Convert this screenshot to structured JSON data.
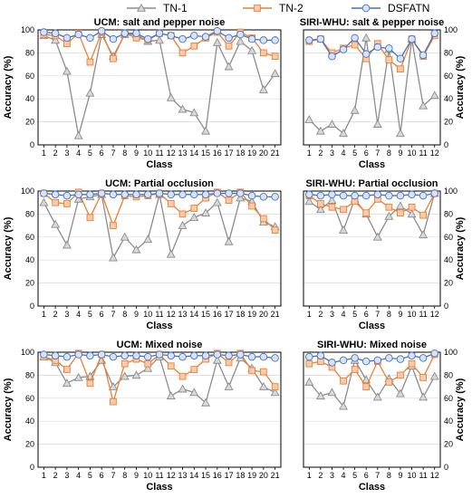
{
  "legend": [
    {
      "name": "TN-1",
      "color": "#8c8c8c",
      "marker": "triangle"
    },
    {
      "name": "TN-2",
      "color": "#ed7d31",
      "marker": "square"
    },
    {
      "name": "DSFATN",
      "color": "#4472c4",
      "marker": "circle"
    }
  ],
  "chart_data": [
    {
      "type": "line",
      "title": "UCM: salt and pepper noise",
      "xlabel": "Class",
      "ylabel": "Accuracy (%)",
      "ylim": [
        0,
        100
      ],
      "yticks": [
        0,
        20,
        40,
        60,
        80,
        100
      ],
      "x": [
        1,
        2,
        3,
        4,
        5,
        6,
        7,
        8,
        9,
        10,
        11,
        12,
        13,
        14,
        15,
        16,
        17,
        18,
        19,
        20,
        21
      ],
      "series": [
        {
          "name": "TN-1",
          "values": [
            95,
            91,
            64,
            8,
            45,
            96,
            77,
            96,
            96,
            90,
            91,
            41,
            31,
            28,
            12,
            89,
            68,
            90,
            82,
            48,
            62
          ]
        },
        {
          "name": "TN-2",
          "values": [
            96,
            95,
            88,
            97,
            72,
            98,
            75,
            97,
            93,
            91,
            97,
            95,
            80,
            86,
            93,
            98,
            86,
            98,
            93,
            80,
            77
          ]
        },
        {
          "name": "DSFATN",
          "values": [
            98,
            97,
            93,
            96,
            93,
            99,
            92,
            97,
            97,
            92,
            97,
            95,
            92,
            95,
            94,
            99,
            93,
            96,
            92,
            91,
            91
          ]
        }
      ]
    },
    {
      "type": "line",
      "title": "SIRI-WHU: salt & pepper noise",
      "xlabel": "Class",
      "ylabel": "Accuracy (%)",
      "ylim": [
        0,
        100
      ],
      "yticks": [
        0,
        20,
        40,
        60,
        80,
        100
      ],
      "x": [
        1,
        2,
        3,
        4,
        5,
        6,
        7,
        8,
        9,
        10,
        11,
        12
      ],
      "series": [
        {
          "name": "TN-1",
          "values": [
            22,
            12,
            18,
            10,
            30,
            93,
            18,
            83,
            10,
            92,
            34,
            43
          ]
        },
        {
          "name": "TN-2",
          "values": [
            90,
            92,
            80,
            84,
            87,
            75,
            88,
            74,
            66,
            92,
            77,
            95
          ]
        },
        {
          "name": "DSFATN",
          "values": [
            91,
            92,
            77,
            83,
            93,
            79,
            85,
            84,
            75,
            92,
            78,
            97
          ]
        }
      ]
    },
    {
      "type": "line",
      "title": "UCM: Partial occlusion",
      "xlabel": "Class",
      "ylabel": "Accuracy (%)",
      "ylim": [
        0,
        100
      ],
      "yticks": [
        0,
        20,
        40,
        60,
        80,
        100
      ],
      "x": [
        1,
        2,
        3,
        4,
        5,
        6,
        7,
        8,
        9,
        10,
        11,
        12,
        13,
        14,
        15,
        16,
        17,
        18,
        19,
        20,
        21
      ],
      "series": [
        {
          "name": "TN-1",
          "values": [
            90,
            71,
            53,
            93,
            95,
            97,
            42,
            60,
            49,
            58,
            97,
            45,
            70,
            77,
            81,
            90,
            56,
            94,
            91,
            73,
            69
          ]
        },
        {
          "name": "TN-2",
          "values": [
            98,
            90,
            89,
            99,
            77,
            98,
            70,
            96,
            95,
            96,
            98,
            89,
            80,
            85,
            94,
            99,
            92,
            99,
            87,
            76,
            66
          ]
        },
        {
          "name": "DSFATN",
          "values": [
            98,
            97,
            96,
            97,
            97,
            98,
            97,
            97,
            97,
            97,
            98,
            97,
            97,
            97,
            97,
            98,
            98,
            98,
            96,
            95,
            95
          ]
        }
      ]
    },
    {
      "type": "line",
      "title": "SIRI-WHU: Partial occlusion",
      "xlabel": "Class",
      "ylabel": "Accuracy (%)",
      "ylim": [
        0,
        100
      ],
      "yticks": [
        0,
        20,
        40,
        60,
        80,
        100
      ],
      "x": [
        1,
        2,
        3,
        4,
        5,
        6,
        7,
        8,
        9,
        10,
        11,
        12
      ],
      "series": [
        {
          "name": "TN-1",
          "values": [
            91,
            84,
            92,
            66,
            93,
            80,
            60,
            78,
            87,
            80,
            62,
            98
          ]
        },
        {
          "name": "TN-2",
          "values": [
            96,
            89,
            86,
            84,
            91,
            81,
            93,
            86,
            81,
            86,
            79,
            98
          ]
        },
        {
          "name": "DSFATN",
          "values": [
            97,
            96,
            97,
            96,
            96,
            96,
            97,
            96,
            96,
            97,
            96,
            98
          ]
        }
      ]
    },
    {
      "type": "line",
      "title": "UCM: Mixed noise",
      "xlabel": "Class",
      "ylabel": "Accuracy (%)",
      "ylim": [
        0,
        100
      ],
      "yticks": [
        0,
        20,
        40,
        60,
        80,
        100
      ],
      "x": [
        1,
        2,
        3,
        4,
        5,
        6,
        7,
        8,
        9,
        10,
        11,
        12,
        13,
        14,
        15,
        16,
        17,
        18,
        19,
        20,
        21
      ],
      "series": [
        {
          "name": "TN-1",
          "values": [
            96,
            91,
            73,
            78,
            79,
            93,
            70,
            79,
            80,
            86,
            96,
            62,
            68,
            65,
            56,
            93,
            70,
            95,
            86,
            70,
            65
          ]
        },
        {
          "name": "TN-2",
          "values": [
            96,
            93,
            85,
            99,
            73,
            98,
            57,
            90,
            94,
            90,
            98,
            88,
            79,
            85,
            94,
            99,
            91,
            99,
            84,
            83,
            70
          ]
        },
        {
          "name": "DSFATN",
          "values": [
            98,
            97,
            96,
            98,
            97,
            98,
            96,
            97,
            97,
            96,
            98,
            97,
            96,
            97,
            97,
            98,
            97,
            98,
            96,
            96,
            95
          ]
        }
      ]
    },
    {
      "type": "line",
      "title": "SIRI-WHU: Mixed noise",
      "xlabel": "Class",
      "ylabel": "Accuracy (%)",
      "ylim": [
        0,
        100
      ],
      "yticks": [
        0,
        20,
        40,
        60,
        80,
        100
      ],
      "x": [
        1,
        2,
        3,
        4,
        5,
        6,
        7,
        8,
        9,
        10,
        11,
        12
      ],
      "series": [
        {
          "name": "TN-1",
          "values": [
            74,
            62,
            65,
            53,
            93,
            76,
            61,
            77,
            64,
            88,
            61,
            79
          ]
        },
        {
          "name": "TN-2",
          "values": [
            90,
            92,
            87,
            75,
            85,
            70,
            92,
            74,
            80,
            90,
            78,
            98
          ]
        },
        {
          "name": "DSFATN",
          "values": [
            96,
            97,
            91,
            93,
            95,
            92,
            93,
            95,
            94,
            97,
            95,
            99
          ]
        }
      ]
    }
  ]
}
